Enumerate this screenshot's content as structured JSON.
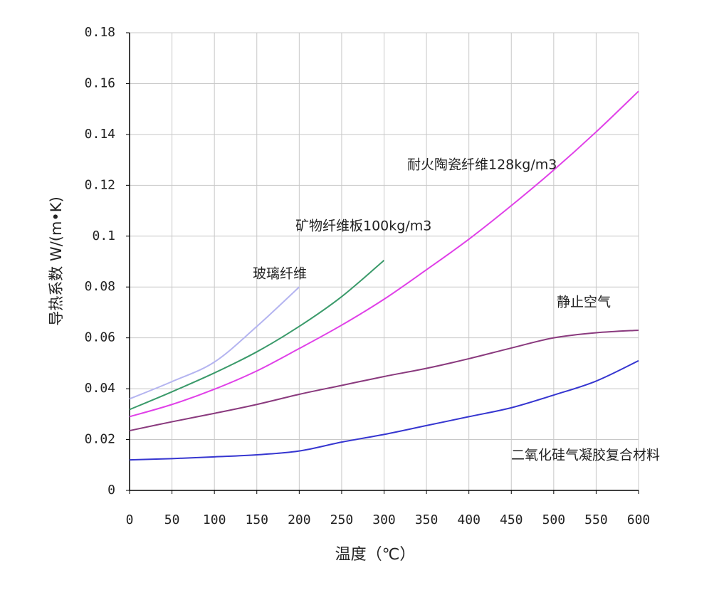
{
  "chart_data": {
    "type": "line",
    "xlabel": "温度（℃）",
    "ylabel": "导热系数  W/(m•K)",
    "x": [
      0,
      50,
      100,
      150,
      200,
      250,
      300,
      350,
      400,
      450,
      500,
      550,
      600
    ],
    "xlim": [
      0,
      600
    ],
    "xticks": [
      0,
      50,
      100,
      150,
      200,
      250,
      300,
      350,
      400,
      450,
      500,
      550,
      600
    ],
    "ylim": [
      0,
      0.18
    ],
    "yticks": [
      0,
      0.02,
      0.04,
      0.06,
      0.08,
      0.1,
      0.12,
      0.14,
      0.16,
      0.18
    ],
    "grid": true,
    "series": [
      {
        "name": "二氧化硅气凝胶复合材料",
        "color": "#3636d0",
        "values": [
          0.012,
          0.0125,
          0.0132,
          0.014,
          0.0155,
          0.019,
          0.022,
          0.0255,
          0.029,
          0.0325,
          0.0375,
          0.043,
          0.051
        ]
      },
      {
        "name": "静止空气",
        "color": "#8a3a7e",
        "values": [
          0.0235,
          0.027,
          0.0303,
          0.0338,
          0.0378,
          0.0413,
          0.0448,
          0.048,
          0.0518,
          0.056,
          0.06,
          0.062,
          0.063
        ]
      },
      {
        "name": "耐火陶瓷纤维128kg/m3",
        "color": "#e040e8",
        "values": [
          0.029,
          0.0338,
          0.0398,
          0.047,
          0.0558,
          0.065,
          0.0752,
          0.0868,
          0.0988,
          0.112,
          0.126,
          0.141,
          0.157
        ]
      },
      {
        "name": "矿物纤维板100kg/m3",
        "color": "#3a9a6a",
        "values": [
          0.0318,
          0.0388,
          0.0462,
          0.0545,
          0.0645,
          0.0762,
          0.0905,
          null,
          null,
          null,
          null,
          null,
          null
        ]
      },
      {
        "name": "玻璃纤维",
        "color": "#b4b4f0",
        "values": [
          0.036,
          0.0428,
          0.0505,
          0.0645,
          0.08,
          null,
          null,
          null,
          null,
          null,
          null,
          null,
          null
        ]
      }
    ]
  }
}
